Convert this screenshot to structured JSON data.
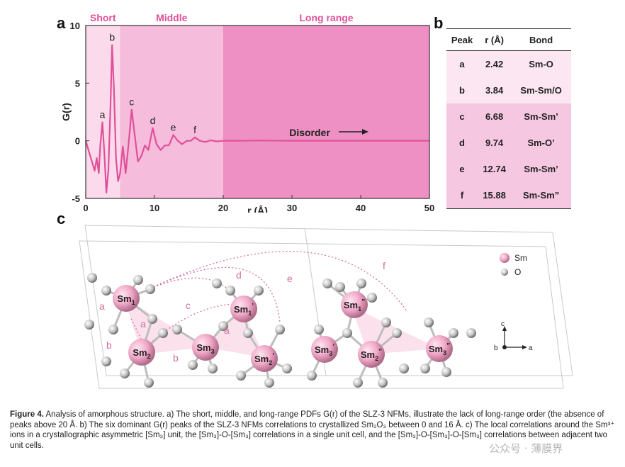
{
  "panel_labels": {
    "a": "a",
    "b": "b",
    "c": "c"
  },
  "chart_data": {
    "type": "line",
    "title": "",
    "xlabel": "r (Å)",
    "ylabel": "G(r)",
    "xlim": [
      0,
      50
    ],
    "ylim": [
      -5,
      10
    ],
    "xticks": [
      0,
      10,
      20,
      30,
      40,
      50
    ],
    "yticks": [
      -5,
      0,
      5,
      10
    ],
    "regions": [
      {
        "label": "Short",
        "from": 0,
        "to": 5,
        "color": "#fbdaeb"
      },
      {
        "label": "Middle",
        "from": 5,
        "to": 20,
        "color": "#f6bcdb"
      },
      {
        "label": "Long range",
        "from": 20,
        "to": 50,
        "color": "#ee90c3"
      }
    ],
    "peaks": [
      {
        "label": "a",
        "x": 2.42,
        "y": 1.6
      },
      {
        "label": "b",
        "x": 3.84,
        "y": 8.3
      },
      {
        "label": "c",
        "x": 6.68,
        "y": 2.7
      },
      {
        "label": "d",
        "x": 9.74,
        "y": 1.1
      },
      {
        "label": "e",
        "x": 12.74,
        "y": 0.5
      },
      {
        "label": "f",
        "x": 15.88,
        "y": 0.3
      }
    ],
    "series": [
      {
        "color": "#e0509a",
        "x": [
          0.0,
          0.5,
          1.0,
          1.3,
          1.6,
          1.9,
          2.1,
          2.42,
          2.7,
          3.0,
          3.3,
          3.6,
          3.84,
          4.1,
          4.4,
          4.7,
          5.0,
          5.4,
          5.8,
          6.2,
          6.68,
          7.1,
          7.6,
          8.1,
          8.6,
          9.1,
          9.74,
          10.3,
          10.9,
          11.5,
          12.1,
          12.74,
          13.4,
          14.0,
          14.7,
          15.3,
          15.88,
          16.6,
          17.4,
          18.2,
          19.0,
          20.0,
          22.0,
          25.0,
          30.0,
          35.0,
          40.0,
          45.0,
          50.0
        ],
        "y": [
          0.0,
          -1.0,
          -2.0,
          -2.6,
          -1.5,
          -2.8,
          -0.5,
          1.6,
          -1.0,
          -4.5,
          -2.5,
          3.0,
          8.3,
          4.5,
          -1.5,
          -3.5,
          -2.8,
          -0.5,
          -2.8,
          -0.5,
          2.7,
          0.6,
          -1.8,
          -1.3,
          -0.4,
          -0.8,
          1.1,
          -0.3,
          -0.8,
          -0.4,
          -0.4,
          0.5,
          0.0,
          -0.3,
          0.0,
          0.0,
          0.3,
          0.0,
          -0.1,
          0.05,
          -0.05,
          0.0,
          0.0,
          0.02,
          0.0,
          0.0,
          0.0,
          0.0,
          0.0
        ]
      }
    ],
    "annotation": "Disorder"
  },
  "table": {
    "headers": [
      "Peak",
      "r (Å)",
      "Bond"
    ],
    "rows": [
      {
        "peak": "a",
        "r": "2.42",
        "bond": "Sm-O"
      },
      {
        "peak": "b",
        "r": "3.84",
        "bond": "Sm-Sm/O"
      },
      {
        "peak": "c",
        "r": "6.68",
        "bond": "Sm-Sm’"
      },
      {
        "peak": "d",
        "r": "9.74",
        "bond": "Sm-O’"
      },
      {
        "peak": "e",
        "r": "12.74",
        "bond": "Sm-Sm’"
      },
      {
        "peak": "f",
        "r": "15.88",
        "bond": "Sm-Sm”"
      }
    ]
  },
  "structure": {
    "legend": [
      {
        "label": "Sm",
        "color": "#f0a8c8"
      },
      {
        "label": "O",
        "color": "#b8b8b8"
      }
    ],
    "atoms": {
      "sm1": {
        "base": "Sm",
        "sub": "1",
        "sup": ""
      },
      "sm2": {
        "base": "Sm",
        "sub": "2",
        "sup": ""
      },
      "sm3": {
        "base": "Sm",
        "sub": "3",
        "sup": ""
      },
      "sm1p": {
        "base": "Sm",
        "sub": "1",
        "sup": "’"
      },
      "sm2p": {
        "base": "Sm",
        "sub": "2",
        "sup": "’"
      },
      "sm3p": {
        "base": "Sm",
        "sub": "3",
        "sup": "’"
      },
      "sm1pp": {
        "base": "Sm",
        "sub": "1",
        "sup": "”"
      },
      "sm2pp": {
        "base": "Sm",
        "sub": "2",
        "sup": "”"
      },
      "sm3pp": {
        "base": "Sm",
        "sub": "3",
        "sup": "”"
      }
    },
    "link_labels": {
      "a1": "a",
      "a2": "a",
      "a3": "a",
      "b1": "b",
      "b2": "b",
      "c": "c",
      "d": "d",
      "e": "e",
      "f": "f"
    },
    "axes": {
      "c": "c",
      "b": "b",
      "a": "a"
    }
  },
  "caption": {
    "figure_label": "Figure 4.",
    "text": "Analysis of amorphous structure. a) The short, middle, and long-range PDFs G(r) of the SLZ-3 NFMs, illustrate the lack of long-range order (the absence of peaks above 20 Å. b) The six dominant G(r) peaks of the SLZ-3 NFMs correlations to crystallized Sm₂O₃ between 0 and 16 Å. c) The local correlations around the Sm³⁺ ions in a crystallographic asymmetric [Sm₃] unit, the [Sm₃]-O-[Sm₃] correlations in a single unit cell, and the [Sm₃]-O-[Sm₃]-O-[Sm₃] correlations between adjacent two unit cells."
  },
  "watermark": "公众号 · 薄膜界"
}
